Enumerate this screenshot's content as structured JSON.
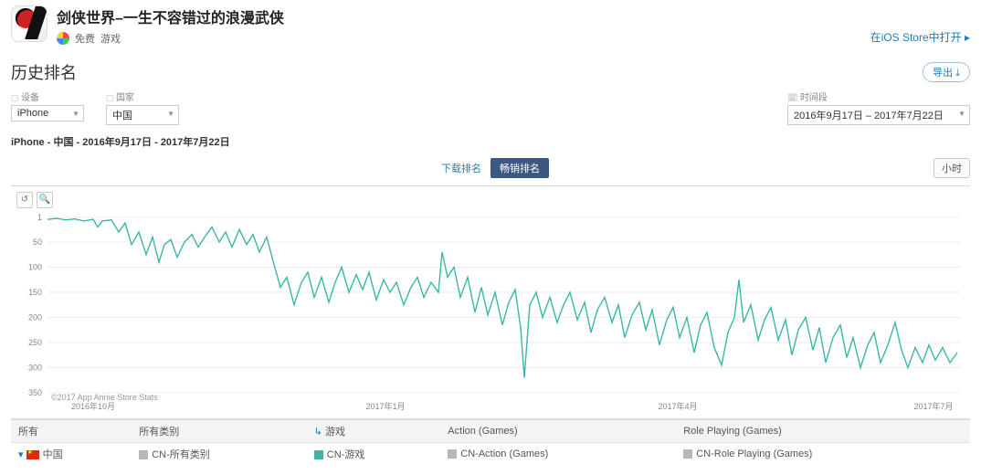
{
  "header": {
    "title": "剑侠世界–一生不容错过的浪漫武侠",
    "price": "免费",
    "category": "游戏",
    "open_link": "在iOS Store中打开 ▸"
  },
  "section": {
    "title": "历史排名",
    "export_label": "导出 ⤓"
  },
  "filters": {
    "device_label": "设备",
    "device_value": "iPhone",
    "country_label": "国家",
    "country_value": "中国",
    "date_label": "时间段",
    "date_value": "2016年9月17日 – 2017年7月22日"
  },
  "subtitle": "iPhone - 中国 - 2016年9月17日 - 2017年7月22日",
  "tabs": {
    "downloads": "下载排名",
    "grossing": "畅销排名",
    "hour": "小时"
  },
  "chart": {
    "type": "line",
    "y_label_implicit": "rank",
    "ylim": [
      350,
      1
    ],
    "yticks": [
      1,
      50,
      100,
      150,
      200,
      250,
      300,
      350
    ],
    "xticks": [
      "2016年10月",
      "2017年1月",
      "2017年4月",
      "2017年7月"
    ],
    "xtick_pos": [
      0.05,
      0.37,
      0.69,
      0.97
    ],
    "copyright": "©2017 App Annie Store Stats",
    "line_color": "#3bb6a8",
    "grid_color": "#eeeeee",
    "background_color": "#ffffff",
    "series": [
      {
        "x": 0.0,
        "y": 5
      },
      {
        "x": 0.01,
        "y": 3
      },
      {
        "x": 0.02,
        "y": 6
      },
      {
        "x": 0.03,
        "y": 4
      },
      {
        "x": 0.04,
        "y": 8
      },
      {
        "x": 0.05,
        "y": 5
      },
      {
        "x": 0.055,
        "y": 20
      },
      {
        "x": 0.06,
        "y": 8
      },
      {
        "x": 0.07,
        "y": 6
      },
      {
        "x": 0.078,
        "y": 30
      },
      {
        "x": 0.085,
        "y": 12
      },
      {
        "x": 0.092,
        "y": 55
      },
      {
        "x": 0.1,
        "y": 30
      },
      {
        "x": 0.108,
        "y": 75
      },
      {
        "x": 0.115,
        "y": 40
      },
      {
        "x": 0.122,
        "y": 90
      },
      {
        "x": 0.128,
        "y": 55
      },
      {
        "x": 0.135,
        "y": 45
      },
      {
        "x": 0.142,
        "y": 80
      },
      {
        "x": 0.15,
        "y": 50
      },
      {
        "x": 0.158,
        "y": 35
      },
      {
        "x": 0.165,
        "y": 60
      },
      {
        "x": 0.172,
        "y": 40
      },
      {
        "x": 0.18,
        "y": 20
      },
      {
        "x": 0.188,
        "y": 50
      },
      {
        "x": 0.195,
        "y": 30
      },
      {
        "x": 0.202,
        "y": 60
      },
      {
        "x": 0.21,
        "y": 25
      },
      {
        "x": 0.218,
        "y": 55
      },
      {
        "x": 0.225,
        "y": 35
      },
      {
        "x": 0.232,
        "y": 70
      },
      {
        "x": 0.24,
        "y": 40
      },
      {
        "x": 0.248,
        "y": 95
      },
      {
        "x": 0.255,
        "y": 140
      },
      {
        "x": 0.262,
        "y": 120
      },
      {
        "x": 0.27,
        "y": 175
      },
      {
        "x": 0.278,
        "y": 130
      },
      {
        "x": 0.285,
        "y": 110
      },
      {
        "x": 0.292,
        "y": 160
      },
      {
        "x": 0.3,
        "y": 120
      },
      {
        "x": 0.308,
        "y": 170
      },
      {
        "x": 0.315,
        "y": 130
      },
      {
        "x": 0.322,
        "y": 100
      },
      {
        "x": 0.33,
        "y": 150
      },
      {
        "x": 0.338,
        "y": 115
      },
      {
        "x": 0.345,
        "y": 145
      },
      {
        "x": 0.352,
        "y": 110
      },
      {
        "x": 0.36,
        "y": 165
      },
      {
        "x": 0.368,
        "y": 125
      },
      {
        "x": 0.375,
        "y": 150
      },
      {
        "x": 0.382,
        "y": 130
      },
      {
        "x": 0.39,
        "y": 175
      },
      {
        "x": 0.398,
        "y": 140
      },
      {
        "x": 0.405,
        "y": 120
      },
      {
        "x": 0.412,
        "y": 160
      },
      {
        "x": 0.42,
        "y": 130
      },
      {
        "x": 0.428,
        "y": 150
      },
      {
        "x": 0.432,
        "y": 70
      },
      {
        "x": 0.438,
        "y": 120
      },
      {
        "x": 0.445,
        "y": 100
      },
      {
        "x": 0.452,
        "y": 160
      },
      {
        "x": 0.46,
        "y": 120
      },
      {
        "x": 0.468,
        "y": 190
      },
      {
        "x": 0.475,
        "y": 140
      },
      {
        "x": 0.482,
        "y": 195
      },
      {
        "x": 0.49,
        "y": 150
      },
      {
        "x": 0.498,
        "y": 215
      },
      {
        "x": 0.505,
        "y": 170
      },
      {
        "x": 0.512,
        "y": 145
      },
      {
        "x": 0.518,
        "y": 220
      },
      {
        "x": 0.522,
        "y": 320
      },
      {
        "x": 0.528,
        "y": 175
      },
      {
        "x": 0.535,
        "y": 150
      },
      {
        "x": 0.542,
        "y": 200
      },
      {
        "x": 0.55,
        "y": 160
      },
      {
        "x": 0.558,
        "y": 210
      },
      {
        "x": 0.565,
        "y": 175
      },
      {
        "x": 0.572,
        "y": 150
      },
      {
        "x": 0.58,
        "y": 205
      },
      {
        "x": 0.588,
        "y": 170
      },
      {
        "x": 0.595,
        "y": 230
      },
      {
        "x": 0.602,
        "y": 185
      },
      {
        "x": 0.61,
        "y": 160
      },
      {
        "x": 0.618,
        "y": 210
      },
      {
        "x": 0.625,
        "y": 175
      },
      {
        "x": 0.632,
        "y": 240
      },
      {
        "x": 0.64,
        "y": 195
      },
      {
        "x": 0.648,
        "y": 170
      },
      {
        "x": 0.655,
        "y": 225
      },
      {
        "x": 0.662,
        "y": 185
      },
      {
        "x": 0.67,
        "y": 255
      },
      {
        "x": 0.678,
        "y": 205
      },
      {
        "x": 0.685,
        "y": 180
      },
      {
        "x": 0.692,
        "y": 240
      },
      {
        "x": 0.7,
        "y": 200
      },
      {
        "x": 0.708,
        "y": 270
      },
      {
        "x": 0.715,
        "y": 215
      },
      {
        "x": 0.722,
        "y": 190
      },
      {
        "x": 0.73,
        "y": 260
      },
      {
        "x": 0.738,
        "y": 295
      },
      {
        "x": 0.745,
        "y": 230
      },
      {
        "x": 0.752,
        "y": 200
      },
      {
        "x": 0.757,
        "y": 125
      },
      {
        "x": 0.762,
        "y": 210
      },
      {
        "x": 0.77,
        "y": 175
      },
      {
        "x": 0.778,
        "y": 245
      },
      {
        "x": 0.785,
        "y": 205
      },
      {
        "x": 0.792,
        "y": 180
      },
      {
        "x": 0.8,
        "y": 245
      },
      {
        "x": 0.808,
        "y": 205
      },
      {
        "x": 0.815,
        "y": 275
      },
      {
        "x": 0.822,
        "y": 225
      },
      {
        "x": 0.83,
        "y": 200
      },
      {
        "x": 0.838,
        "y": 265
      },
      {
        "x": 0.845,
        "y": 220
      },
      {
        "x": 0.852,
        "y": 290
      },
      {
        "x": 0.86,
        "y": 240
      },
      {
        "x": 0.868,
        "y": 215
      },
      {
        "x": 0.875,
        "y": 280
      },
      {
        "x": 0.882,
        "y": 240
      },
      {
        "x": 0.89,
        "y": 300
      },
      {
        "x": 0.898,
        "y": 255
      },
      {
        "x": 0.905,
        "y": 230
      },
      {
        "x": 0.912,
        "y": 290
      },
      {
        "x": 0.92,
        "y": 255
      },
      {
        "x": 0.928,
        "y": 210
      },
      {
        "x": 0.935,
        "y": 265
      },
      {
        "x": 0.942,
        "y": 300
      },
      {
        "x": 0.95,
        "y": 260
      },
      {
        "x": 0.958,
        "y": 290
      },
      {
        "x": 0.965,
        "y": 255
      },
      {
        "x": 0.972,
        "y": 285
      },
      {
        "x": 0.98,
        "y": 260
      },
      {
        "x": 0.988,
        "y": 290
      },
      {
        "x": 0.996,
        "y": 270
      }
    ]
  },
  "legend": {
    "row1": [
      "所有",
      "所有类别",
      "游戏",
      "Action (Games)",
      "Role Playing (Games)"
    ],
    "row2_country": "中国",
    "row2": [
      "CN-所有类别",
      "CN-游戏",
      "CN-Action (Games)",
      "CN-Role Playing (Games)"
    ],
    "row2_colors": [
      "grey",
      "teal",
      "grey",
      "grey"
    ]
  }
}
